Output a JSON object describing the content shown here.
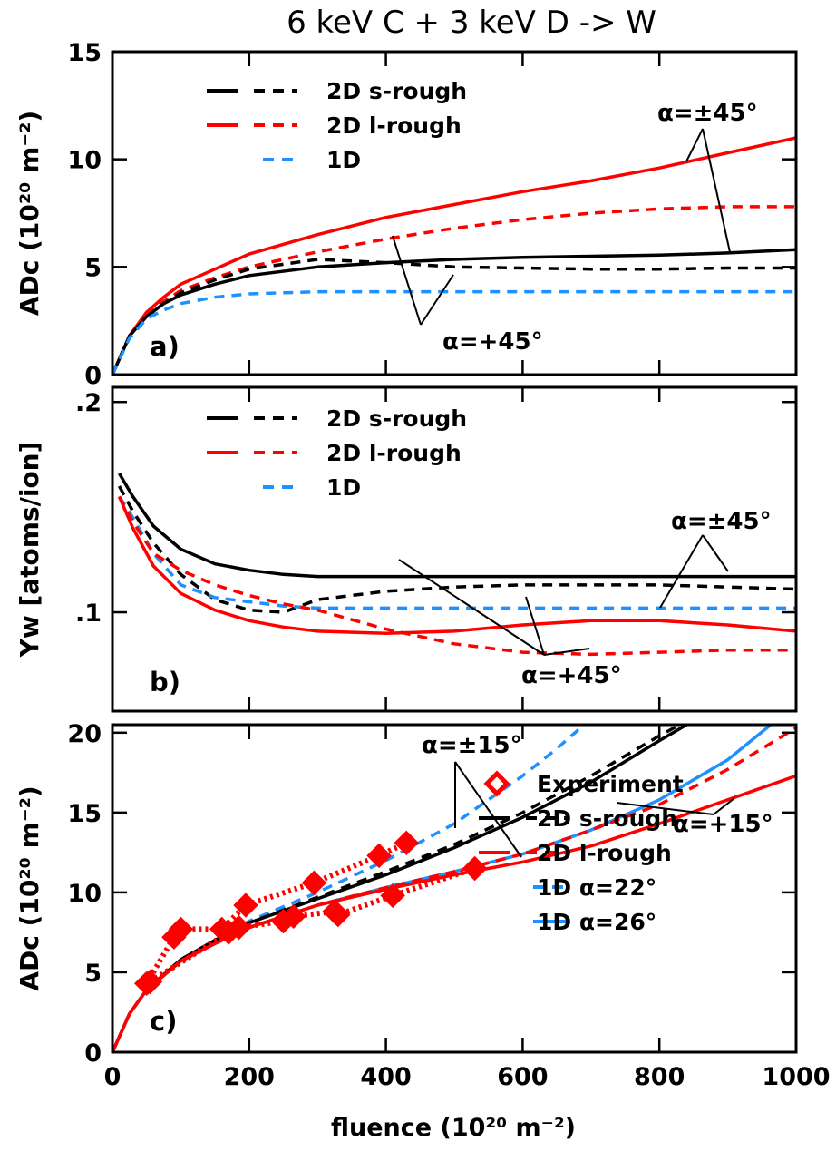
{
  "title": "6 keV C + 3 keV D -> W",
  "x_axis_label": "fluence (10²⁰ m⁻²)",
  "chart_data": [
    {
      "panel": "a)",
      "type": "line",
      "ylabel": "ADc (10²⁰ m⁻²)",
      "xlim": [
        0,
        1000
      ],
      "ylim": [
        0,
        15
      ],
      "xticks": [
        "0",
        "200",
        "400",
        "600",
        "800",
        "1000"
      ],
      "yticks": [
        {
          "v": 0,
          "label": "0"
        },
        {
          "v": 5,
          "label": "5"
        },
        {
          "v": 10,
          "label": "10"
        },
        {
          "v": 15,
          "label": "15"
        }
      ],
      "legend": [
        {
          "label": "2D s-rough",
          "colors": [
            "#000000",
            "#000000"
          ],
          "styles": [
            "solid",
            "dashed"
          ]
        },
        {
          "label": "2D l-rough",
          "colors": [
            "#ff0000",
            "#ff0000"
          ],
          "styles": [
            "solid",
            "dashed"
          ]
        },
        {
          "label": "1D",
          "colors": [
            "#1e90ff"
          ],
          "styles": [
            "dashed"
          ]
        }
      ],
      "annotations": [
        {
          "text": "α=±45°"
        },
        {
          "text": "α=+45°"
        }
      ],
      "series": [
        {
          "color": "#ff0000",
          "style": "solid",
          "x": [
            0,
            25,
            50,
            75,
            100,
            150,
            200,
            300,
            400,
            500,
            600,
            700,
            800,
            900,
            1000
          ],
          "y": [
            0,
            1.8,
            2.9,
            3.6,
            4.2,
            4.9,
            5.6,
            6.5,
            7.3,
            7.9,
            8.5,
            9.0,
            9.6,
            10.3,
            11.0
          ]
        },
        {
          "color": "#ff0000",
          "style": "dashed",
          "x": [
            0,
            25,
            50,
            75,
            100,
            150,
            200,
            300,
            400,
            500,
            600,
            700,
            800,
            900,
            1000
          ],
          "y": [
            0,
            1.8,
            2.8,
            3.4,
            3.9,
            4.5,
            5.0,
            5.7,
            6.3,
            6.8,
            7.2,
            7.5,
            7.7,
            7.8,
            7.8
          ]
        },
        {
          "color": "#000000",
          "style": "solid",
          "x": [
            0,
            25,
            50,
            75,
            100,
            150,
            200,
            300,
            400,
            500,
            600,
            700,
            800,
            900,
            1000
          ],
          "y": [
            0,
            1.8,
            2.7,
            3.3,
            3.7,
            4.2,
            4.6,
            5.0,
            5.2,
            5.35,
            5.45,
            5.5,
            5.55,
            5.65,
            5.8
          ]
        },
        {
          "color": "#000000",
          "style": "dashed",
          "x": [
            0,
            25,
            50,
            75,
            100,
            150,
            200,
            300,
            400,
            500,
            600,
            700,
            800,
            900,
            1000
          ],
          "y": [
            0,
            1.8,
            2.7,
            3.3,
            3.8,
            4.4,
            4.9,
            5.35,
            5.2,
            5.0,
            4.95,
            4.9,
            4.9,
            4.95,
            4.95
          ]
        },
        {
          "color": "#1e90ff",
          "style": "dashed",
          "x": [
            0,
            25,
            50,
            75,
            100,
            150,
            200,
            300,
            400,
            500,
            600,
            700,
            800,
            900,
            1000
          ],
          "y": [
            0,
            1.7,
            2.6,
            3.0,
            3.3,
            3.6,
            3.75,
            3.85,
            3.85,
            3.85,
            3.85,
            3.85,
            3.85,
            3.85,
            3.85
          ]
        }
      ]
    },
    {
      "panel": "b)",
      "type": "line",
      "ylabel": "Yw [atoms/ion]",
      "xlim": [
        0,
        1000
      ],
      "ylim": [
        0.053,
        0.207
      ],
      "yticks": [
        {
          "v": 0.1,
          "label": ".1"
        },
        {
          "v": 0.2,
          "label": ".2"
        }
      ],
      "legend": [
        {
          "label": "2D s-rough",
          "colors": [
            "#000000",
            "#000000"
          ],
          "styles": [
            "solid",
            "dashed"
          ]
        },
        {
          "label": "2D l-rough",
          "colors": [
            "#ff0000",
            "#ff0000"
          ],
          "styles": [
            "solid",
            "dashed"
          ]
        },
        {
          "label": "1D",
          "colors": [
            "#1e90ff"
          ],
          "styles": [
            "dashed"
          ]
        }
      ],
      "annotations": [
        {
          "text": "α=±45°"
        },
        {
          "text": "α=+45°"
        }
      ],
      "series": [
        {
          "color": "#000000",
          "style": "solid",
          "x": [
            10,
            30,
            60,
            100,
            150,
            200,
            250,
            300,
            400,
            500,
            600,
            700,
            800,
            900,
            1000
          ],
          "y": [
            0.166,
            0.155,
            0.141,
            0.13,
            0.123,
            0.12,
            0.118,
            0.117,
            0.117,
            0.117,
            0.117,
            0.117,
            0.117,
            0.117,
            0.117
          ]
        },
        {
          "color": "#000000",
          "style": "dashed",
          "x": [
            10,
            30,
            60,
            100,
            150,
            200,
            250,
            300,
            400,
            500,
            600,
            700,
            800,
            900,
            1000
          ],
          "y": [
            0.16,
            0.148,
            0.133,
            0.118,
            0.106,
            0.101,
            0.1,
            0.106,
            0.11,
            0.112,
            0.113,
            0.113,
            0.113,
            0.112,
            0.111
          ]
        },
        {
          "color": "#1e90ff",
          "style": "dashed",
          "x": [
            10,
            30,
            60,
            100,
            150,
            200,
            250,
            300,
            400,
            500,
            600,
            700,
            800,
            900,
            1000
          ],
          "y": [
            0.155,
            0.145,
            0.128,
            0.113,
            0.107,
            0.105,
            0.103,
            0.102,
            0.102,
            0.102,
            0.102,
            0.102,
            0.102,
            0.102,
            0.102
          ]
        },
        {
          "color": "#ff0000",
          "style": "dashed",
          "x": [
            10,
            30,
            60,
            100,
            150,
            200,
            250,
            300,
            400,
            500,
            600,
            700,
            800,
            900,
            1000
          ],
          "y": [
            0.155,
            0.143,
            0.128,
            0.12,
            0.113,
            0.108,
            0.104,
            0.101,
            0.092,
            0.085,
            0.081,
            0.08,
            0.081,
            0.082,
            0.082
          ]
        },
        {
          "color": "#ff0000",
          "style": "solid",
          "x": [
            10,
            30,
            60,
            100,
            150,
            200,
            250,
            300,
            400,
            500,
            600,
            700,
            800,
            900,
            1000
          ],
          "y": [
            0.155,
            0.14,
            0.122,
            0.109,
            0.101,
            0.096,
            0.093,
            0.091,
            0.09,
            0.091,
            0.094,
            0.096,
            0.096,
            0.094,
            0.091
          ]
        }
      ]
    },
    {
      "panel": "c)",
      "type": "line",
      "ylabel": "ADc (10²⁰ m⁻²)",
      "xlim": [
        0,
        1000
      ],
      "ylim": [
        0,
        20.5
      ],
      "xticks": [
        "0",
        "200",
        "400",
        "600",
        "800",
        "1000"
      ],
      "yticks": [
        {
          "v": 0,
          "label": "0"
        },
        {
          "v": 5,
          "label": "5"
        },
        {
          "v": 10,
          "label": "10"
        },
        {
          "v": 15,
          "label": "15"
        },
        {
          "v": 20,
          "label": "20"
        }
      ],
      "legend": [
        {
          "label": "Experiment",
          "colors": [
            "#ff0000"
          ],
          "styles": [
            "diamond"
          ]
        },
        {
          "label": "2D s-rough",
          "colors": [
            "#000000",
            "#000000"
          ],
          "styles": [
            "solid",
            "dashed"
          ]
        },
        {
          "label": "2D l-rough",
          "colors": [
            "#ff0000",
            "#ff0000"
          ],
          "styles": [
            "solid",
            "dashed"
          ]
        },
        {
          "label": "1D α=22°",
          "colors": [
            "#1e90ff"
          ],
          "styles": [
            "dashed"
          ]
        },
        {
          "label": "1D α=26°",
          "colors": [
            "#1e90ff"
          ],
          "styles": [
            "solid"
          ]
        }
      ],
      "annotations": [
        {
          "text": "α=±15°"
        },
        {
          "text": "α=+15°"
        }
      ],
      "series": [
        {
          "color": "#1e90ff",
          "style": "dashed",
          "x": [
            0,
            25,
            50,
            100,
            150,
            200,
            300,
            400,
            500,
            600,
            650,
            690
          ],
          "y": [
            0,
            2.4,
            3.9,
            5.8,
            7.0,
            8.2,
            10.0,
            12.0,
            14.3,
            17.3,
            19.0,
            20.5
          ]
        },
        {
          "color": "#000000",
          "style": "solid",
          "x": [
            0,
            25,
            50,
            100,
            150,
            200,
            300,
            400,
            500,
            600,
            700,
            800,
            840
          ],
          "y": [
            0,
            2.4,
            3.9,
            5.8,
            7.0,
            8.1,
            9.6,
            11.1,
            12.8,
            14.7,
            16.9,
            19.5,
            20.5
          ]
        },
        {
          "color": "#000000",
          "style": "dashed",
          "x": [
            0,
            25,
            50,
            100,
            150,
            200,
            300,
            400,
            500,
            600,
            700,
            800,
            830
          ],
          "y": [
            0,
            2.4,
            3.9,
            5.8,
            7.0,
            8.1,
            9.7,
            11.3,
            13.0,
            15.0,
            17.3,
            19.8,
            20.5
          ]
        },
        {
          "color": "#1e90ff",
          "style": "solid",
          "x": [
            0,
            25,
            50,
            100,
            150,
            200,
            300,
            400,
            500,
            600,
            700,
            800,
            900,
            963
          ],
          "y": [
            0,
            2.4,
            3.9,
            5.7,
            6.8,
            7.8,
            9.2,
            10.3,
            11.3,
            12.4,
            13.9,
            15.8,
            18.3,
            20.5
          ]
        },
        {
          "color": "#ff0000",
          "style": "dashed",
          "x": [
            0,
            25,
            50,
            100,
            150,
            200,
            300,
            400,
            500,
            600,
            700,
            800,
            900,
            1000
          ],
          "y": [
            0,
            2.4,
            3.9,
            5.7,
            6.8,
            7.8,
            9.2,
            10.3,
            11.3,
            12.4,
            13.9,
            15.5,
            17.7,
            20.3
          ]
        },
        {
          "color": "#ff0000",
          "style": "solid",
          "x": [
            0,
            25,
            50,
            100,
            150,
            200,
            300,
            400,
            500,
            600,
            700,
            800,
            900,
            1000
          ],
          "y": [
            0,
            2.4,
            3.9,
            5.7,
            6.8,
            7.8,
            9.2,
            10.2,
            11.1,
            11.9,
            12.9,
            14.3,
            15.8,
            17.3
          ]
        },
        {
          "color": "#ff0000",
          "style": "dotted",
          "marker": "diamond",
          "x": [
            50,
            90,
            100,
            160,
            195,
            295,
            390,
            430
          ],
          "y": [
            4.3,
            7.2,
            7.7,
            7.7,
            9.2,
            10.6,
            12.3,
            13.1
          ]
        },
        {
          "color": "#ff0000",
          "style": "dotted",
          "marker": "diamond",
          "x": [
            55,
            170,
            185,
            250,
            265,
            325,
            330,
            410,
            530
          ],
          "y": [
            4.4,
            7.5,
            7.8,
            8.2,
            8.5,
            8.8,
            8.6,
            9.8,
            11.5
          ]
        }
      ]
    }
  ]
}
